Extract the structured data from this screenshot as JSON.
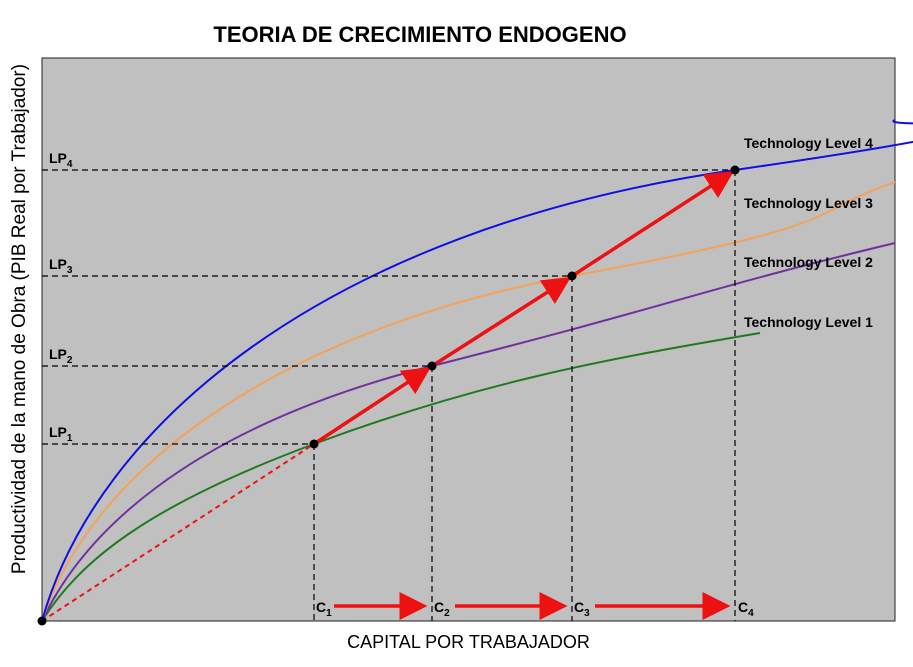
{
  "title": "TEORIA DE CRECIMIENTO ENDOGENO",
  "x_axis_label": "CAPITAL POR TRABAJADOR",
  "y_axis_label": "Productividad de la mano de Obra (PIB Real por Trabajador)",
  "curves": [
    {
      "label": "Technology Level 1",
      "color": "#1f7a1f"
    },
    {
      "label": "Technology Level 2",
      "color": "#7030a0"
    },
    {
      "label": "Technology Level 3",
      "color": "#f4a15a"
    },
    {
      "label": "Technology Level 4",
      "color": "#1010e0"
    }
  ],
  "capital_levels": [
    {
      "base": "C",
      "sub": "1"
    },
    {
      "base": "C",
      "sub": "2"
    },
    {
      "base": "C",
      "sub": "3"
    },
    {
      "base": "C",
      "sub": "4"
    }
  ],
  "productivity_levels": [
    {
      "base": "LP",
      "sub": "1"
    },
    {
      "base": "LP",
      "sub": "2"
    },
    {
      "base": "LP",
      "sub": "3"
    },
    {
      "base": "LP",
      "sub": "4"
    }
  ],
  "colors": {
    "plot_background": "#c0c0c0",
    "arrow": "#ee1111",
    "guide_lines": "#000000"
  }
}
